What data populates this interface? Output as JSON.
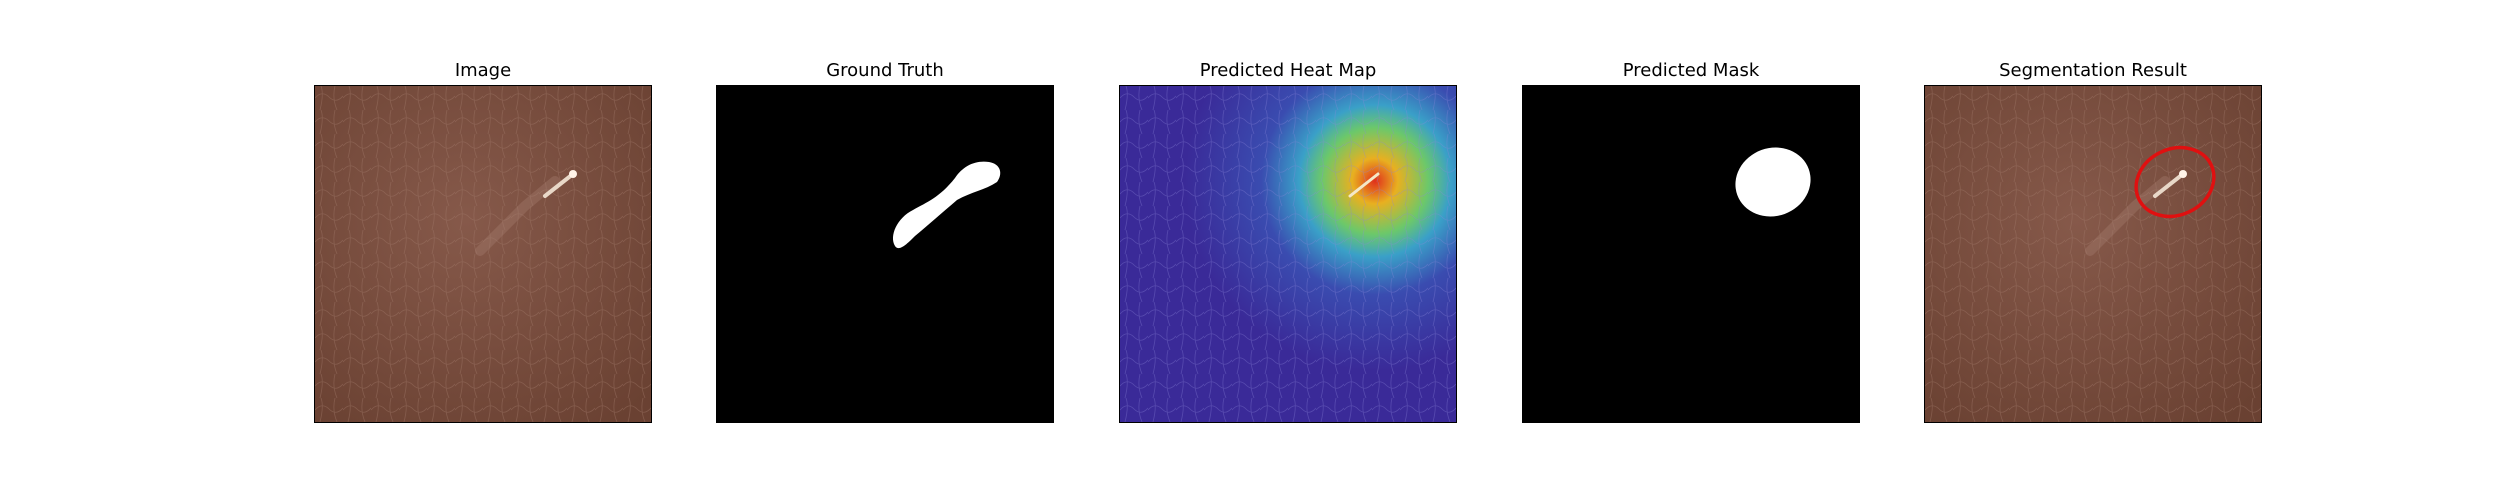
{
  "figure": {
    "panels": [
      {
        "title": "Image"
      },
      {
        "title": "Ground Truth"
      },
      {
        "title": "Predicted Heat Map"
      },
      {
        "title": "Predicted Mask"
      },
      {
        "title": "Segmentation Result"
      }
    ]
  },
  "colors": {
    "leather": "#7a4e3b",
    "mask_bg": "#000000",
    "mask_fg": "#ffffff",
    "heat_low": "#3a2fa0",
    "heat_high": "#e0301c",
    "contour": "#e01010"
  }
}
